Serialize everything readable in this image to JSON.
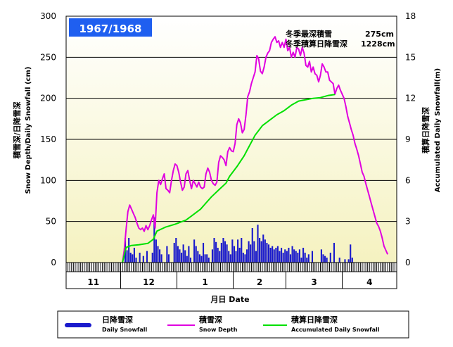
{
  "season": "1967/1968",
  "summary": {
    "max_depth_label": "冬季最深積雪",
    "max_depth_value": "275cm",
    "total_snowfall_label": "冬季積算日降雪深",
    "total_snowfall_value": "1228cm"
  },
  "left_axis": {
    "title_jp": "積雪深/日降雪深",
    "title_en": "Snow Depth/Daily Snowfall (cm)"
  },
  "right_axis": {
    "title_jp": "積算日降雪深",
    "title_en": "Accumulated Daily Snowfall(m)"
  },
  "x_axis": {
    "title": "月日 Date"
  },
  "legend": {
    "daily_jp": "日降雪深",
    "daily_en": "Daily Snowfall",
    "depth_jp": "積雪深",
    "depth_en": "Snow Depth",
    "accum_jp": "積算日降雪深",
    "accum_en": "Accumulated Daily Snowfall"
  },
  "colors": {
    "daily_bar": "#1a1acc",
    "depth_line": "#e000e0",
    "accum_line": "#00e000",
    "title_box": "#1f5ff0",
    "plot_bg_top": "#ffffff",
    "plot_bg_bottom": "#f5f2c0"
  },
  "chart_data": {
    "type": "bar+line",
    "left_ylim": [
      0,
      300
    ],
    "left_yticks": [
      "0",
      "50",
      "100",
      "150",
      "200",
      "250",
      "300"
    ],
    "right_ylim": [
      0,
      18
    ],
    "right_yticks": [
      "0",
      "3",
      "6",
      "9",
      "12",
      "15",
      "18"
    ],
    "months": [
      "11",
      "12",
      "1",
      "2",
      "3",
      "4"
    ],
    "month_days": [
      30,
      31,
      31,
      29,
      31,
      30
    ],
    "start_date": "1967-11-01",
    "grid": "horizontal",
    "series": [
      {
        "name": "Daily Snowfall",
        "kind": "bar",
        "axis": "left",
        "points": [
          [
            32,
            30
          ],
          [
            33,
            15
          ],
          [
            34,
            30
          ],
          [
            35,
            12
          ],
          [
            36,
            10
          ],
          [
            37,
            18
          ],
          [
            38,
            6
          ],
          [
            40,
            12
          ],
          [
            42,
            8
          ],
          [
            44,
            14
          ],
          [
            47,
            12
          ],
          [
            48,
            55
          ],
          [
            49,
            28
          ],
          [
            50,
            20
          ],
          [
            51,
            16
          ],
          [
            52,
            10
          ],
          [
            55,
            20
          ],
          [
            56,
            10
          ],
          [
            59,
            24
          ],
          [
            60,
            30
          ],
          [
            61,
            20
          ],
          [
            62,
            16
          ],
          [
            63,
            12
          ],
          [
            64,
            22
          ],
          [
            65,
            15
          ],
          [
            66,
            8
          ],
          [
            67,
            20
          ],
          [
            68,
            6
          ],
          [
            70,
            28
          ],
          [
            71,
            20
          ],
          [
            72,
            14
          ],
          [
            73,
            10
          ],
          [
            74,
            8
          ],
          [
            75,
            24
          ],
          [
            76,
            10
          ],
          [
            77,
            10
          ],
          [
            78,
            6
          ],
          [
            80,
            16
          ],
          [
            81,
            30
          ],
          [
            82,
            25
          ],
          [
            83,
            18
          ],
          [
            84,
            14
          ],
          [
            85,
            24
          ],
          [
            86,
            30
          ],
          [
            87,
            26
          ],
          [
            88,
            22
          ],
          [
            89,
            14
          ],
          [
            90,
            10
          ],
          [
            91,
            28
          ],
          [
            92,
            20
          ],
          [
            93,
            14
          ],
          [
            94,
            28
          ],
          [
            95,
            18
          ],
          [
            96,
            30
          ],
          [
            97,
            12
          ],
          [
            98,
            10
          ],
          [
            99,
            16
          ],
          [
            100,
            26
          ],
          [
            101,
            22
          ],
          [
            102,
            42
          ],
          [
            103,
            26
          ],
          [
            104,
            14
          ],
          [
            105,
            46
          ],
          [
            106,
            30
          ],
          [
            107,
            26
          ],
          [
            108,
            34
          ],
          [
            109,
            28
          ],
          [
            110,
            24
          ],
          [
            111,
            22
          ],
          [
            112,
            18
          ],
          [
            113,
            20
          ],
          [
            114,
            16
          ],
          [
            115,
            18
          ],
          [
            116,
            20
          ],
          [
            117,
            14
          ],
          [
            118,
            18
          ],
          [
            119,
            12
          ],
          [
            120,
            16
          ],
          [
            121,
            14
          ],
          [
            122,
            18
          ],
          [
            123,
            10
          ],
          [
            124,
            20
          ],
          [
            125,
            16
          ],
          [
            126,
            14
          ],
          [
            127,
            12
          ],
          [
            128,
            16
          ],
          [
            129,
            6
          ],
          [
            130,
            18
          ],
          [
            131,
            12
          ],
          [
            132,
            6
          ],
          [
            133,
            10
          ],
          [
            135,
            14
          ],
          [
            140,
            16
          ],
          [
            141,
            10
          ],
          [
            142,
            8
          ],
          [
            143,
            6
          ],
          [
            145,
            12
          ],
          [
            147,
            24
          ],
          [
            150,
            6
          ],
          [
            153,
            4
          ],
          [
            155,
            4
          ],
          [
            156,
            22
          ],
          [
            157,
            6
          ]
        ]
      },
      {
        "name": "Snow Depth",
        "kind": "line",
        "axis": "left",
        "points": [
          [
            31,
            0
          ],
          [
            32,
            15
          ],
          [
            33,
            40
          ],
          [
            34,
            62
          ],
          [
            35,
            70
          ],
          [
            36,
            65
          ],
          [
            37,
            60
          ],
          [
            38,
            55
          ],
          [
            39,
            48
          ],
          [
            40,
            42
          ],
          [
            41,
            40
          ],
          [
            42,
            42
          ],
          [
            43,
            38
          ],
          [
            44,
            45
          ],
          [
            45,
            40
          ],
          [
            46,
            45
          ],
          [
            47,
            52
          ],
          [
            48,
            58
          ],
          [
            49,
            42
          ],
          [
            50,
            85
          ],
          [
            51,
            100
          ],
          [
            52,
            95
          ],
          [
            53,
            102
          ],
          [
            54,
            108
          ],
          [
            55,
            90
          ],
          [
            56,
            88
          ],
          [
            57,
            85
          ],
          [
            58,
            100
          ],
          [
            59,
            112
          ],
          [
            60,
            120
          ],
          [
            61,
            118
          ],
          [
            62,
            110
          ],
          [
            63,
            98
          ],
          [
            64,
            88
          ],
          [
            65,
            92
          ],
          [
            66,
            108
          ],
          [
            67,
            112
          ],
          [
            68,
            100
          ],
          [
            69,
            90
          ],
          [
            70,
            100
          ],
          [
            71,
            96
          ],
          [
            72,
            92
          ],
          [
            73,
            98
          ],
          [
            74,
            92
          ],
          [
            75,
            90
          ],
          [
            76,
            92
          ],
          [
            77,
            108
          ],
          [
            78,
            115
          ],
          [
            79,
            110
          ],
          [
            80,
            100
          ],
          [
            81,
            96
          ],
          [
            82,
            94
          ],
          [
            83,
            98
          ],
          [
            84,
            122
          ],
          [
            85,
            130
          ],
          [
            86,
            128
          ],
          [
            87,
            125
          ],
          [
            88,
            118
          ],
          [
            89,
            135
          ],
          [
            90,
            140
          ],
          [
            91,
            136
          ],
          [
            92,
            135
          ],
          [
            93,
            145
          ],
          [
            94,
            168
          ],
          [
            95,
            175
          ],
          [
            96,
            170
          ],
          [
            97,
            158
          ],
          [
            98,
            162
          ],
          [
            99,
            180
          ],
          [
            100,
            202
          ],
          [
            101,
            208
          ],
          [
            102,
            218
          ],
          [
            103,
            225
          ],
          [
            104,
            232
          ],
          [
            105,
            252
          ],
          [
            106,
            248
          ],
          [
            107,
            233
          ],
          [
            108,
            230
          ],
          [
            109,
            238
          ],
          [
            110,
            250
          ],
          [
            111,
            255
          ],
          [
            112,
            258
          ],
          [
            113,
            268
          ],
          [
            114,
            272
          ],
          [
            115,
            275
          ],
          [
            116,
            268
          ],
          [
            117,
            270
          ],
          [
            118,
            262
          ],
          [
            119,
            268
          ],
          [
            120,
            262
          ],
          [
            121,
            272
          ],
          [
            122,
            258
          ],
          [
            123,
            262
          ],
          [
            124,
            250
          ],
          [
            125,
            256
          ],
          [
            126,
            250
          ],
          [
            127,
            262
          ],
          [
            128,
            260
          ],
          [
            129,
            252
          ],
          [
            130,
            262
          ],
          [
            131,
            255
          ],
          [
            132,
            240
          ],
          [
            133,
            238
          ],
          [
            134,
            245
          ],
          [
            135,
            232
          ],
          [
            136,
            238
          ],
          [
            137,
            230
          ],
          [
            138,
            228
          ],
          [
            139,
            220
          ],
          [
            140,
            228
          ],
          [
            141,
            242
          ],
          [
            142,
            238
          ],
          [
            143,
            232
          ],
          [
            144,
            232
          ],
          [
            145,
            222
          ],
          [
            146,
            220
          ],
          [
            147,
            218
          ],
          [
            148,
            205
          ],
          [
            149,
            212
          ],
          [
            150,
            216
          ],
          [
            151,
            210
          ],
          [
            152,
            205
          ],
          [
            153,
            200
          ],
          [
            154,
            190
          ],
          [
            155,
            178
          ],
          [
            156,
            170
          ],
          [
            157,
            162
          ],
          [
            158,
            155
          ],
          [
            159,
            145
          ],
          [
            160,
            138
          ],
          [
            161,
            130
          ],
          [
            162,
            120
          ],
          [
            163,
            110
          ],
          [
            164,
            105
          ],
          [
            165,
            96
          ],
          [
            166,
            88
          ],
          [
            167,
            80
          ],
          [
            168,
            72
          ],
          [
            169,
            64
          ],
          [
            170,
            56
          ],
          [
            171,
            48
          ],
          [
            172,
            44
          ],
          [
            173,
            38
          ],
          [
            174,
            30
          ],
          [
            175,
            20
          ],
          [
            176,
            15
          ],
          [
            177,
            10
          ]
        ]
      },
      {
        "name": "Accumulated Daily Snowfall",
        "kind": "line",
        "axis": "right",
        "points": [
          [
            31,
            0.0
          ],
          [
            33,
            1.1
          ],
          [
            36,
            1.25
          ],
          [
            40,
            1.3
          ],
          [
            45,
            1.4
          ],
          [
            48,
            1.7
          ],
          [
            50,
            2.3
          ],
          [
            55,
            2.6
          ],
          [
            60,
            2.8
          ],
          [
            63,
            2.95
          ],
          [
            66,
            3.1
          ],
          [
            70,
            3.5
          ],
          [
            74,
            3.9
          ],
          [
            78,
            4.5
          ],
          [
            80,
            4.8
          ],
          [
            84,
            5.3
          ],
          [
            88,
            5.8
          ],
          [
            90,
            6.3
          ],
          [
            94,
            7.0
          ],
          [
            98,
            7.8
          ],
          [
            100,
            8.3
          ],
          [
            104,
            9.3
          ],
          [
            108,
            10.0
          ],
          [
            112,
            10.4
          ],
          [
            116,
            10.8
          ],
          [
            120,
            11.1
          ],
          [
            124,
            11.5
          ],
          [
            128,
            11.8
          ],
          [
            132,
            11.9
          ],
          [
            136,
            12.0
          ],
          [
            140,
            12.05
          ],
          [
            144,
            12.2
          ],
          [
            148,
            12.28
          ]
        ]
      }
    ]
  }
}
